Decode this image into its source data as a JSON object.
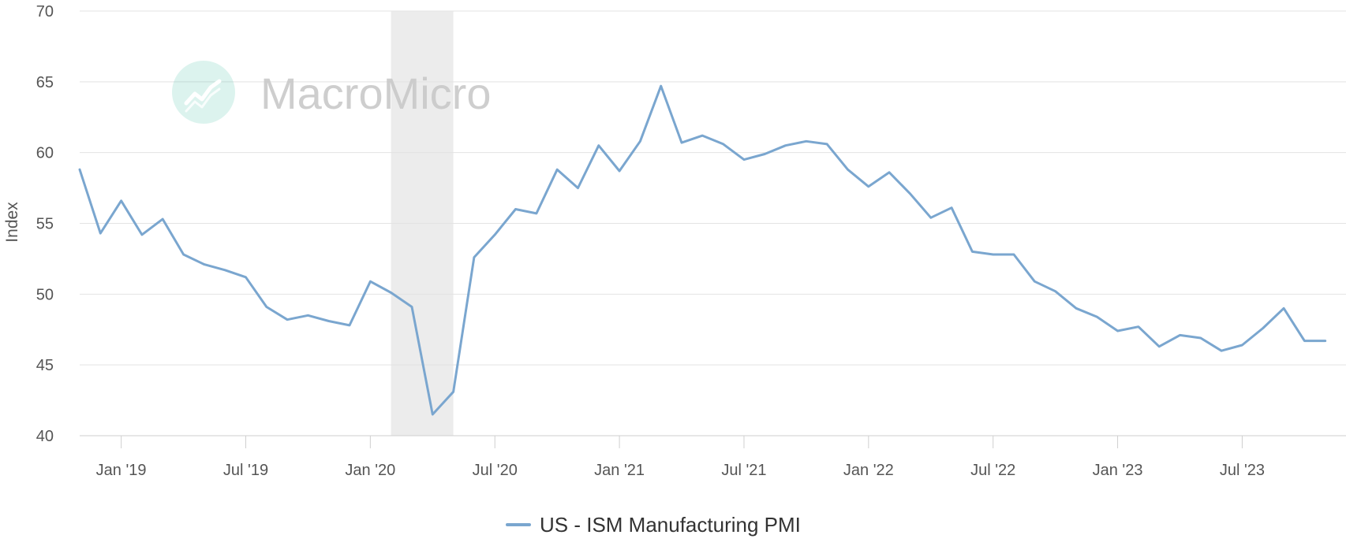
{
  "watermark": {
    "text": "MacroMicro",
    "logo_icon": "chart-logo-icon",
    "logo_color": "#3fbf9f"
  },
  "chart_data": {
    "type": "line",
    "ylabel": "Index",
    "ylim": [
      40,
      70
    ],
    "y_ticks": [
      40,
      45,
      50,
      55,
      60,
      65,
      70
    ],
    "x_range": [
      "2018-11",
      "2023-12"
    ],
    "x_ticks": [
      {
        "date": "2019-01",
        "label": "Jan '19"
      },
      {
        "date": "2019-07",
        "label": "Jul '19"
      },
      {
        "date": "2020-01",
        "label": "Jan '20"
      },
      {
        "date": "2020-07",
        "label": "Jul '20"
      },
      {
        "date": "2021-01",
        "label": "Jan '21"
      },
      {
        "date": "2021-07",
        "label": "Jul '21"
      },
      {
        "date": "2022-01",
        "label": "Jan '22"
      },
      {
        "date": "2022-07",
        "label": "Jul '22"
      },
      {
        "date": "2023-01",
        "label": "Jan '23"
      },
      {
        "date": "2023-07",
        "label": "Jul '23"
      }
    ],
    "shaded_period": {
      "start": "2020-02",
      "end": "2020-05",
      "color": "#ececec"
    },
    "grid": true,
    "legend": "bottom-center",
    "series": [
      {
        "name": "US - ISM Manufacturing PMI",
        "color": "#7aa6cf",
        "points": [
          [
            "2018-11",
            58.8
          ],
          [
            "2018-12",
            54.3
          ],
          [
            "2019-01",
            56.6
          ],
          [
            "2019-02",
            54.2
          ],
          [
            "2019-03",
            55.3
          ],
          [
            "2019-04",
            52.8
          ],
          [
            "2019-05",
            52.1
          ],
          [
            "2019-06",
            51.7
          ],
          [
            "2019-07",
            51.2
          ],
          [
            "2019-08",
            49.1
          ],
          [
            "2019-09",
            48.2
          ],
          [
            "2019-10",
            48.5
          ],
          [
            "2019-11",
            48.1
          ],
          [
            "2019-12",
            47.8
          ],
          [
            "2020-01",
            50.9
          ],
          [
            "2020-02",
            50.1
          ],
          [
            "2020-03",
            49.1
          ],
          [
            "2020-04",
            41.5
          ],
          [
            "2020-05",
            43.1
          ],
          [
            "2020-06",
            52.6
          ],
          [
            "2020-07",
            54.2
          ],
          [
            "2020-08",
            56.0
          ],
          [
            "2020-09",
            55.7
          ],
          [
            "2020-10",
            58.8
          ],
          [
            "2020-11",
            57.5
          ],
          [
            "2020-12",
            60.5
          ],
          [
            "2021-01",
            58.7
          ],
          [
            "2021-02",
            60.8
          ],
          [
            "2021-03",
            64.7
          ],
          [
            "2021-04",
            60.7
          ],
          [
            "2021-05",
            61.2
          ],
          [
            "2021-06",
            60.6
          ],
          [
            "2021-07",
            59.5
          ],
          [
            "2021-08",
            59.9
          ],
          [
            "2021-09",
            60.5
          ],
          [
            "2021-10",
            60.8
          ],
          [
            "2021-11",
            60.6
          ],
          [
            "2021-12",
            58.8
          ],
          [
            "2022-01",
            57.6
          ],
          [
            "2022-02",
            58.6
          ],
          [
            "2022-03",
            57.1
          ],
          [
            "2022-04",
            55.4
          ],
          [
            "2022-05",
            56.1
          ],
          [
            "2022-06",
            53.0
          ],
          [
            "2022-07",
            52.8
          ],
          [
            "2022-08",
            52.8
          ],
          [
            "2022-09",
            50.9
          ],
          [
            "2022-10",
            50.2
          ],
          [
            "2022-11",
            49.0
          ],
          [
            "2022-12",
            48.4
          ],
          [
            "2023-01",
            47.4
          ],
          [
            "2023-02",
            47.7
          ],
          [
            "2023-03",
            46.3
          ],
          [
            "2023-04",
            47.1
          ],
          [
            "2023-05",
            46.9
          ],
          [
            "2023-06",
            46.0
          ],
          [
            "2023-07",
            46.4
          ],
          [
            "2023-08",
            47.6
          ],
          [
            "2023-09",
            49.0
          ],
          [
            "2023-10",
            46.7
          ],
          [
            "2023-11",
            46.7
          ]
        ]
      }
    ]
  }
}
